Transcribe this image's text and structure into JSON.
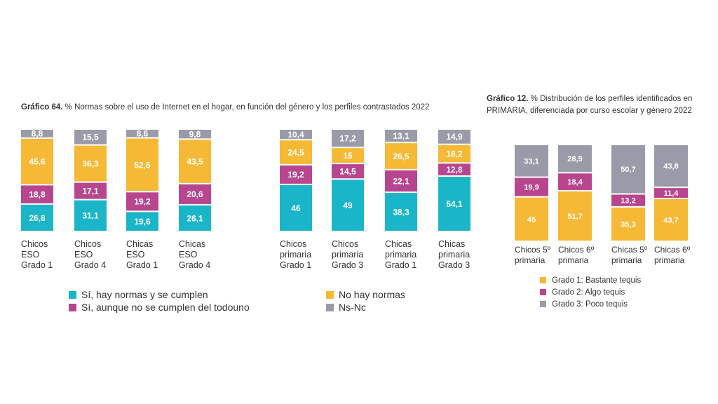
{
  "colors": {
    "cyan": "#1ab5c8",
    "magenta": "#b8468f",
    "yellow": "#f5b935",
    "gray": "#9a9ba8"
  },
  "chart1": {
    "title_bold": "Gráfico 64.",
    "title_text": " % Normas sobre el uso de Internet en el hogar, en función del género y los perfiles contrastados 2022",
    "legend": [
      {
        "label": "Sí, hay normas y se cumplen",
        "color": "#1ab5c8"
      },
      {
        "label": "Sí, aunque no se cumplen del todouno",
        "color": "#b8468f"
      },
      {
        "label": "No hay normas",
        "color": "#f5b935"
      },
      {
        "label": "Ns-Nc",
        "color": "#9a9ba8"
      }
    ]
  },
  "chart2": {
    "title_bold": "Gráfico 12.",
    "title_text": " % Distribución de los perfiles identificados en PRIMARIA, diferenciada por curso escolar y género 2022",
    "legend": [
      {
        "label": "Grado 1: Bastante tequis",
        "color": "#f5b935"
      },
      {
        "label": "Grado 2: Algo tequis",
        "color": "#b8468f"
      },
      {
        "label": "Grado 3: Poco tequis",
        "color": "#9a9ba8"
      }
    ]
  },
  "chart_data": [
    {
      "type": "bar",
      "stacked": true,
      "title": "Gráfico 64. % Normas sobre el uso de Internet en el hogar, en función del género y los perfiles contrastados 2022",
      "categories": [
        [
          "Chicos",
          "ESO",
          "Grado 1"
        ],
        [
          "Chicos",
          "ESO",
          "Grado 4"
        ],
        [
          "Chicas",
          "ESO",
          "Grado 1"
        ],
        [
          "Chicas",
          "ESO",
          "Grado 4"
        ],
        [
          "Chicos",
          "primaria",
          "Grado 1"
        ],
        [
          "Chicos",
          "primaria",
          "Grado 3"
        ],
        [
          "Chicas",
          "primaria",
          "Grado 1"
        ],
        [
          "Chicas",
          "primaria",
          "Grado 3"
        ]
      ],
      "series": [
        {
          "name": "Sí, hay normas y se cumplen",
          "color": "#1ab5c8",
          "values": [
            26.8,
            31.1,
            19.6,
            26.1,
            46,
            49,
            38.3,
            54.1
          ],
          "labels": [
            "26,8",
            "31,1",
            "19,6",
            "26,1",
            "46",
            "49",
            "38,3",
            "54,1"
          ]
        },
        {
          "name": "Sí, aunque no se cumplen del todouno",
          "color": "#b8468f",
          "values": [
            18.8,
            17.1,
            19.2,
            20.6,
            19.2,
            14.5,
            22.1,
            12.8
          ],
          "labels": [
            "18,8",
            "17,1",
            "19,2",
            "20,6",
            "19,2",
            "14,5",
            "22,1",
            "12,8"
          ]
        },
        {
          "name": "No hay normas",
          "color": "#f5b935",
          "values": [
            45.6,
            36.3,
            52.5,
            43.5,
            24.5,
            15,
            26.5,
            18.2
          ],
          "labels": [
            "45,6",
            "36,3",
            "52,5",
            "43,5",
            "24,5",
            "15",
            "26,5",
            "18,2"
          ]
        },
        {
          "name": "Ns-Nc",
          "color": "#9a9ba8",
          "values": [
            8.8,
            15.5,
            8.6,
            9.8,
            10.4,
            17.2,
            13.1,
            14.9
          ],
          "labels": [
            "8,8",
            "15,5",
            "8,6",
            "9,8",
            "10,4",
            "17,2",
            "13,1",
            "14,9"
          ]
        }
      ],
      "legend_position": "bottom",
      "grid": false
    },
    {
      "type": "bar",
      "stacked": true,
      "title": "Gráfico 12. % Distribución de los perfiles identificados en PRIMARIA, diferenciada por curso escolar y género 2022",
      "categories": [
        [
          "Chicos 5º",
          "primaria"
        ],
        [
          "Chicos 6º",
          "primaria"
        ],
        [
          "Chicas 5º",
          "primaria"
        ],
        [
          "Chicas 6º",
          "primaria"
        ]
      ],
      "series": [
        {
          "name": "Grado 1: Bastante tequis",
          "color": "#f5b935",
          "values": [
            45,
            51.7,
            35.3,
            43.7
          ],
          "labels": [
            "45",
            "51,7",
            "35,3",
            "43,7"
          ]
        },
        {
          "name": "Grado 2: Algo tequis",
          "color": "#b8468f",
          "values": [
            19.9,
            18.4,
            13.2,
            11.4
          ],
          "labels": [
            "19,9",
            "18,4",
            "13,2",
            "11,4"
          ]
        },
        {
          "name": "Grado 3: Poco tequis",
          "color": "#9a9ba8",
          "values": [
            33.1,
            28.9,
            50.7,
            43.8
          ],
          "labels": [
            "33,1",
            "28,9",
            "50,7",
            "43,8"
          ]
        }
      ],
      "legend_position": "bottom",
      "grid": false
    }
  ]
}
